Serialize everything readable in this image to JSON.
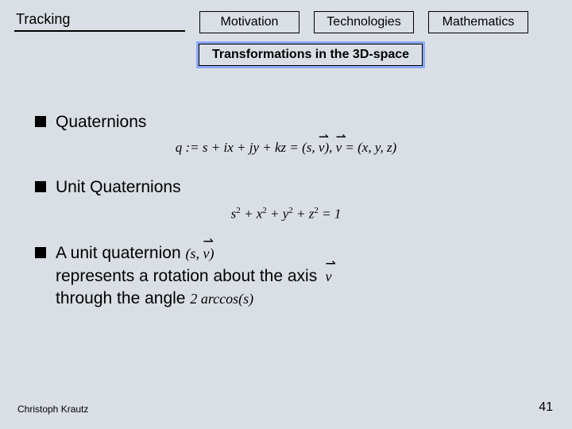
{
  "header": {
    "title": "Tracking",
    "tabs": [
      {
        "label": "Motivation",
        "active": false
      },
      {
        "label": "Technologies",
        "active": false
      },
      {
        "label": "Mathematics",
        "active": true
      }
    ]
  },
  "subtitle": "Transformations in the 3D-space",
  "bullets": {
    "b1": {
      "label": "Quaternions"
    },
    "b2": {
      "label": "Unit Quaternions"
    },
    "b3": {
      "part1": "A unit quaternion ",
      "part2": "represents a rotation about the axis ",
      "part3": "through the angle "
    }
  },
  "formulas": {
    "quat_def_a": "q := s + ix + jy + kz = (s, ",
    "quat_def_b": "),  ",
    "quat_def_c": " = (x, y, z)",
    "unit_a": "s",
    "unit_b": " + x",
    "unit_c": " + y",
    "unit_d": " + z",
    "unit_e": " = 1",
    "pair_open": "(s, ",
    "pair_close": ")",
    "axis": "ν",
    "angle": "2 arccos(s)"
  },
  "footer": {
    "author": "Christoph Krautz",
    "page": "41"
  },
  "colors": {
    "background": "#dadfe5",
    "highlight": "#8aa9ff",
    "text": "#000000"
  }
}
